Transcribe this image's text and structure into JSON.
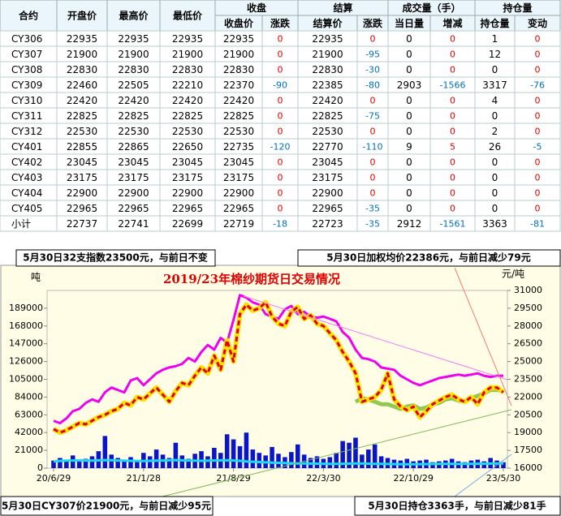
{
  "table": {
    "header_top": [
      "合约",
      "开盘价",
      "最高价",
      "最低价",
      "收盘",
      "结算",
      "成交量（手）",
      "持仓量"
    ],
    "header_sub": [
      "收盘价",
      "涨跌",
      "结算价",
      "涨跌",
      "当日量",
      "增减",
      "持仓量",
      "变动"
    ],
    "rows": [
      [
        "CY306",
        22935,
        22935,
        22935,
        22935,
        0,
        22935,
        0,
        0,
        0,
        1,
        0
      ],
      [
        "CY307",
        21900,
        21900,
        21900,
        21900,
        0,
        21900,
        -95,
        0,
        0,
        12,
        0
      ],
      [
        "CY308",
        22830,
        22830,
        22830,
        22830,
        0,
        22830,
        -30,
        0,
        0,
        0,
        0
      ],
      [
        "CY309",
        22460,
        22505,
        22210,
        22370,
        -90,
        22385,
        -80,
        2903,
        -1566,
        3317,
        -76
      ],
      [
        "CY310",
        22420,
        22420,
        22420,
        22420,
        0,
        22420,
        0,
        0,
        0,
        4,
        0
      ],
      [
        "CY311",
        22825,
        22825,
        22825,
        22825,
        0,
        22825,
        -75,
        0,
        0,
        0,
        0
      ],
      [
        "CY312",
        22530,
        22530,
        22530,
        22530,
        0,
        22530,
        0,
        0,
        0,
        2,
        0
      ],
      [
        "CY401",
        22855,
        22865,
        22650,
        22735,
        -120,
        22770,
        -110,
        9,
        5,
        26,
        -5
      ],
      [
        "CY402",
        23045,
        23045,
        23045,
        23045,
        0,
        23045,
        0,
        0,
        0,
        0,
        0
      ],
      [
        "CY403",
        23175,
        23175,
        23175,
        23175,
        0,
        23175,
        0,
        0,
        0,
        0,
        0
      ],
      [
        "CY404",
        22900,
        22900,
        22900,
        22900,
        0,
        22900,
        0,
        0,
        0,
        0,
        0
      ],
      [
        "CY405",
        22965,
        22965,
        22965,
        22965,
        0,
        22965,
        -35,
        0,
        0,
        0,
        0
      ],
      [
        "小计",
        22737,
        22741,
        22699,
        22719,
        -18,
        22723,
        -35,
        2912,
        -1561,
        3363,
        -81
      ]
    ]
  },
  "notes": [
    "5月30日32支指数23500元，与前日不变",
    "5月30日加权均价22386元，与前日减少79元",
    "5月30日CY307价21900元，与前日减少95元",
    "5月30日持仓3363手，与前日减少81手"
  ],
  "chart_data": {
    "type": "combo",
    "title": "2019/23年棉纱期货日交易情况",
    "y_label": "吨",
    "y2_label": "元/吨",
    "categories": [
      "20/6/29",
      null,
      null,
      null,
      null,
      null,
      null,
      null,
      null,
      null,
      null,
      null,
      null,
      null,
      "21/1/28",
      null,
      null,
      null,
      null,
      null,
      null,
      null,
      null,
      null,
      null,
      null,
      null,
      null,
      "21/8/29",
      null,
      null,
      null,
      null,
      null,
      null,
      null,
      null,
      null,
      null,
      null,
      null,
      null,
      "22/3/30",
      null,
      null,
      null,
      null,
      null,
      null,
      null,
      null,
      null,
      null,
      null,
      null,
      null,
      "22/10/29",
      null,
      null,
      null,
      null,
      null,
      null,
      null,
      null,
      null,
      null,
      null,
      null,
      null,
      "23/5/30"
    ],
    "ylim": [
      0,
      210000
    ],
    "yticks": [
      0,
      21000,
      42000,
      63000,
      84000,
      105000,
      126000,
      147000,
      168000,
      189000
    ],
    "y2lim": [
      16000,
      31000
    ],
    "y2ticks": [
      16000,
      17500,
      19000,
      20500,
      22000,
      23500,
      25000,
      26500,
      28000,
      29500,
      31000
    ],
    "series": [
      {
        "kind": "bar",
        "color": "#0a14c8",
        "values": [
          9000,
          12000,
          8000,
          15000,
          10000,
          11000,
          14000,
          20000,
          38000,
          16000,
          12000,
          10000,
          13000,
          9000,
          18000,
          14000,
          22000,
          16000,
          12000,
          30000,
          15000,
          11000,
          17000,
          20000,
          14000,
          24000,
          18000,
          40000,
          34000,
          26000,
          42000,
          22000,
          18000,
          15000,
          25000,
          17000,
          13000,
          19000,
          28000,
          16000,
          12000,
          14000,
          11000,
          13000,
          18000,
          32000,
          30000,
          36000,
          16000,
          22000,
          28000,
          14000,
          12000,
          10000,
          9000,
          11000,
          8000,
          9000,
          10000,
          7000,
          8000,
          9000,
          11000,
          8000,
          7000,
          9000,
          10000,
          8000,
          12000,
          9000,
          7000
        ]
      },
      {
        "kind": "line",
        "color": "#20d8f0",
        "width": 3,
        "values": [
          8000,
          8500,
          8800,
          9000,
          9200,
          9000,
          8800,
          9200,
          9500,
          9300,
          9000,
          8800,
          8600,
          8500,
          8400,
          8600,
          8800,
          9000,
          9300,
          9500,
          9200,
          9000,
          8800,
          8600,
          8800,
          9000,
          9200,
          9400,
          9000,
          8600,
          8000,
          7600,
          7200,
          6800,
          6500,
          6200,
          6000,
          5800,
          5600,
          5500,
          5400,
          5300,
          5200,
          5100,
          5000,
          5200,
          5400,
          5600,
          5500,
          5300,
          5100,
          5000,
          4900,
          4800,
          4700,
          4600,
          4600,
          4700,
          4800,
          4900,
          5000,
          5100,
          5000,
          4900,
          5000,
          5100,
          5200,
          5300,
          5400,
          5500,
          5600
        ]
      },
      {
        "kind": "line",
        "axis": "y2",
        "color": "#f000f0",
        "width": 3,
        "values": [
          20000,
          19800,
          20200,
          20800,
          21000,
          21500,
          21800,
          21600,
          22400,
          22800,
          22600,
          22400,
          23400,
          23600,
          23000,
          23500,
          24000,
          24300,
          24500,
          24600,
          24800,
          25300,
          25000,
          25800,
          26400,
          26000,
          27000,
          26600,
          28500,
          30600,
          30400,
          30000,
          29800,
          29000,
          28800,
          28600,
          29400,
          29700,
          29000,
          29200,
          28800,
          28700,
          28800,
          28600,
          28400,
          27500,
          27000,
          26000,
          25300,
          25200,
          25000,
          24500,
          24400,
          24300,
          23800,
          23500,
          23200,
          23000,
          23200,
          23400,
          23600,
          23700,
          23800,
          23900,
          23800,
          23900,
          24000,
          23800,
          23700,
          23800,
          23800
        ]
      },
      {
        "kind": "line",
        "axis": "y2",
        "color": "#90c850",
        "width": 5,
        "values": [
          null,
          null,
          null,
          null,
          null,
          null,
          null,
          null,
          null,
          null,
          null,
          null,
          null,
          null,
          null,
          null,
          null,
          null,
          null,
          null,
          null,
          null,
          null,
          null,
          null,
          null,
          null,
          null,
          null,
          null,
          null,
          null,
          null,
          null,
          null,
          null,
          null,
          null,
          null,
          null,
          null,
          null,
          null,
          null,
          null,
          null,
          null,
          21600,
          21900,
          21800,
          21600,
          21400,
          21400,
          21200,
          21000,
          21200,
          21300,
          21000,
          21100,
          21400,
          21500,
          21800,
          21900,
          21700,
          21600,
          21900,
          22100,
          22300,
          22600,
          22600,
          22500
        ]
      },
      {
        "kind": "line",
        "axis": "y2",
        "color": "#e00000",
        "marker_color": "#ffe000",
        "dashed": true,
        "width": 3,
        "values": [
          19300,
          19000,
          19200,
          19500,
          19800,
          19700,
          20000,
          20300,
          20500,
          20800,
          21000,
          21500,
          21300,
          22000,
          21800,
          22300,
          22800,
          22200,
          21600,
          22500,
          23200,
          23000,
          23800,
          24500,
          24000,
          25500,
          24300,
          26800,
          25000,
          29000,
          29800,
          29300,
          29500,
          30000,
          28800,
          28200,
          28000,
          29200,
          29600,
          28600,
          28900,
          28200,
          28000,
          27400,
          26800,
          25800,
          25000,
          24000,
          21600,
          21800,
          22000,
          22600,
          24000,
          21800,
          21200,
          20900,
          21200,
          20300,
          20800,
          21400,
          21700,
          22000,
          22200,
          21800,
          21600,
          22000,
          21400,
          22400,
          22800,
          22800,
          22400
        ]
      }
    ]
  }
}
